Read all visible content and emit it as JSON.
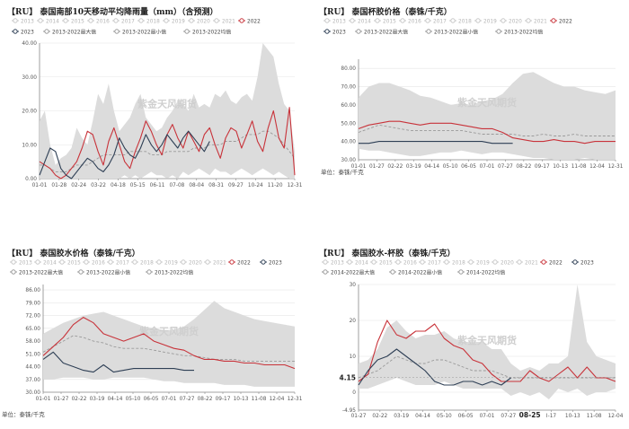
{
  "colors": {
    "band": "#dcdcdc",
    "red": "#c8333a",
    "navy": "#2e3f55",
    "avg": "#9a9a9a",
    "axis": "#888",
    "grid": "#e6e6e6",
    "legend_off": "#c8c8c8",
    "legend_text_off": "#b4b4b4"
  },
  "watermark": "紫金天风期货",
  "chart_data": [
    {
      "id": "rain",
      "type": "line",
      "title": "【RU】 泰国南部10天移动平均降雨量（mm）（含预测）",
      "legend_row1": [
        {
          "label": "2013",
          "on": false
        },
        {
          "label": "2014",
          "on": false
        },
        {
          "label": "2015",
          "on": false
        },
        {
          "label": "2016",
          "on": false
        },
        {
          "label": "2017",
          "on": false
        },
        {
          "label": "2018",
          "on": false
        },
        {
          "label": "2019",
          "on": false
        },
        {
          "label": "2020",
          "on": false
        },
        {
          "label": "2021",
          "on": false
        },
        {
          "label": "2022",
          "on": true,
          "color": "red"
        }
      ],
      "legend_row2": [
        {
          "label": "2023",
          "on": true,
          "color": "navy"
        },
        {
          "label": "2013-2022最大值",
          "on": true,
          "color": "avg"
        },
        {
          "label": "2013-2022最小值",
          "on": true,
          "color": "avg"
        },
        {
          "label": "2013-2022均值",
          "on": true,
          "color": "avg"
        }
      ],
      "x_ticks": [
        "01-01",
        "01-28",
        "02-24",
        "03-22",
        "04-18",
        "05-15",
        "06-11",
        "07-08",
        "08-04",
        "08-31",
        "09-27",
        "10-24",
        "11-20",
        "12-31"
      ],
      "y_ticks": [
        "0.00",
        "10.00",
        "20.00",
        "30.00",
        "40.00"
      ],
      "ylim": [
        0,
        40
      ],
      "unit": "",
      "series": [
        {
          "name": "2013-2022最大值",
          "role": "band_upper",
          "values": [
            17,
            20,
            10,
            4,
            6,
            7,
            9,
            15,
            12,
            10,
            17,
            25,
            22,
            28,
            20,
            14,
            16,
            18,
            22,
            25,
            18,
            16,
            14,
            15,
            18,
            20,
            23,
            22,
            20,
            25,
            21,
            22,
            21,
            25,
            24,
            26,
            23,
            22,
            24,
            25,
            23,
            30,
            40,
            38,
            36,
            28,
            22,
            20,
            8
          ]
        },
        {
          "name": "2013-2022最小值",
          "role": "band_lower",
          "values": [
            0,
            0,
            0,
            0,
            0,
            0,
            0,
            0,
            0,
            0,
            0,
            0,
            0,
            0,
            0,
            0,
            1,
            0,
            1,
            0,
            1,
            2,
            1,
            1,
            0,
            1,
            0,
            2,
            1,
            2,
            3,
            2,
            1,
            3,
            2,
            2,
            1,
            2,
            3,
            2,
            1,
            2,
            3,
            2,
            1,
            2,
            1,
            0,
            0
          ]
        },
        {
          "name": "2013-2022均值",
          "role": "mean",
          "values": [
            4,
            4,
            3,
            2,
            2,
            2,
            3,
            4,
            4,
            4,
            5,
            6,
            7,
            7,
            7,
            7,
            7,
            8,
            8,
            8,
            8,
            7,
            7,
            7,
            8,
            8,
            8,
            8,
            8,
            9,
            9,
            9,
            10,
            10,
            10,
            11,
            11,
            11,
            12,
            13,
            13,
            13,
            14,
            14,
            13,
            12,
            10,
            8,
            6
          ]
        },
        {
          "name": "2022",
          "role": "red",
          "values": [
            5,
            4,
            3,
            1,
            0,
            1,
            3,
            5,
            9,
            14,
            13,
            8,
            4,
            11,
            15,
            10,
            5,
            3,
            8,
            12,
            17,
            14,
            10,
            7,
            13,
            16,
            12,
            9,
            14,
            11,
            8,
            13,
            15,
            10,
            6,
            12,
            15,
            14,
            9,
            13,
            17,
            11,
            8,
            15,
            20,
            12,
            9,
            21,
            1
          ]
        },
        {
          "name": "2023",
          "role": "navy",
          "values": [
            1,
            5,
            9,
            8,
            3,
            1,
            0,
            2,
            4,
            6,
            5,
            3,
            2,
            4,
            7,
            12,
            9,
            7,
            6,
            9,
            13,
            10,
            8,
            10,
            13,
            11,
            9,
            12,
            14,
            12,
            10,
            8,
            11
          ]
        }
      ]
    },
    {
      "id": "cup",
      "type": "line",
      "title": "【RU】 泰国杯胶价格（泰铢/千克）",
      "legend_row1": [
        {
          "label": "2013",
          "on": false
        },
        {
          "label": "2014",
          "on": false
        },
        {
          "label": "2015",
          "on": false
        },
        {
          "label": "2016",
          "on": false
        },
        {
          "label": "2017",
          "on": false
        },
        {
          "label": "2018",
          "on": false
        },
        {
          "label": "2019",
          "on": false
        },
        {
          "label": "2020",
          "on": false
        },
        {
          "label": "2021",
          "on": false
        },
        {
          "label": "2022",
          "on": true,
          "color": "red"
        }
      ],
      "legend_row2": [
        {
          "label": "2023",
          "on": true,
          "color": "navy"
        },
        {
          "label": "2013-2022最大值",
          "on": true,
          "color": "avg"
        },
        {
          "label": "2013-2022最小值",
          "on": true,
          "color": "avg"
        },
        {
          "label": "2013-2022均值",
          "on": true,
          "color": "avg"
        }
      ],
      "x_ticks": [
        "01-01",
        "01-27",
        "02-22",
        "03-19",
        "04-14",
        "05-10",
        "06-05",
        "07-01",
        "07-27",
        "08-22",
        "09-17",
        "10-13",
        "11-08",
        "12-04",
        "12-31"
      ],
      "y_ticks": [
        "30.00",
        "40.00",
        "50.00",
        "60.00",
        "70.00",
        "80.00"
      ],
      "ylim": [
        30,
        85
      ],
      "unit": "单位：泰铢/千克",
      "series": [
        {
          "name": "2013-2022最大值",
          "role": "band_upper",
          "values": [
            64,
            70,
            72,
            72,
            70,
            68,
            65,
            64,
            62,
            60,
            61,
            60,
            62,
            63,
            66,
            72,
            77,
            78,
            75,
            72,
            70,
            70,
            68,
            67,
            66,
            68
          ]
        },
        {
          "name": "2013-2022最小值",
          "role": "band_lower",
          "values": [
            36,
            35,
            35,
            34,
            33,
            32,
            32,
            33,
            34,
            34,
            35,
            34,
            33,
            34,
            34,
            33,
            32,
            31,
            31,
            30,
            30,
            30,
            31,
            30,
            30,
            30
          ]
        },
        {
          "name": "2013-2022均值",
          "role": "mean",
          "values": [
            45,
            47,
            49,
            48,
            47,
            46,
            46,
            46,
            46,
            46,
            46,
            45,
            44,
            44,
            44,
            44,
            43,
            43,
            44,
            43,
            43,
            44,
            43,
            43,
            43,
            43
          ]
        },
        {
          "name": "2022",
          "role": "red",
          "values": [
            47,
            49,
            50,
            51,
            51,
            50,
            49,
            50,
            50,
            50,
            49,
            48,
            47,
            47,
            45,
            42,
            41,
            40,
            40,
            41,
            40,
            40,
            39,
            40,
            40,
            40
          ]
        },
        {
          "name": "2023",
          "role": "navy",
          "values": [
            39,
            39,
            40,
            40,
            40,
            40,
            40,
            40,
            40,
            40,
            40,
            40,
            40,
            39,
            39,
            39
          ]
        }
      ]
    },
    {
      "id": "latex",
      "type": "line",
      "title": "【RU】 泰国胶水价格（泰铢/千克）",
      "legend_row1": [
        {
          "label": "2013",
          "on": false
        },
        {
          "label": "2014",
          "on": false
        },
        {
          "label": "2015",
          "on": false
        },
        {
          "label": "2016",
          "on": false
        },
        {
          "label": "2017",
          "on": false
        },
        {
          "label": "2018",
          "on": false
        },
        {
          "label": "2019",
          "on": false
        },
        {
          "label": "2020",
          "on": false
        },
        {
          "label": "2021",
          "on": false
        },
        {
          "label": "2022",
          "on": true,
          "color": "red"
        },
        {
          "label": "2023",
          "on": true,
          "color": "navy"
        }
      ],
      "legend_row2": [
        {
          "label": "2013-2022最大值",
          "on": true,
          "color": "avg"
        },
        {
          "label": "2013-2022最小值",
          "on": true,
          "color": "avg"
        },
        {
          "label": "2013-2022均值",
          "on": true,
          "color": "avg"
        }
      ],
      "x_ticks": [
        "01-01",
        "01-27",
        "02-22",
        "03-19",
        "04-14",
        "05-10",
        "06-05",
        "07-01",
        "07-27",
        "08-22",
        "09-17",
        "10-13",
        "11-08",
        "12-04",
        "12-31"
      ],
      "y_ticks": [
        "30.00",
        "37.00",
        "44.00",
        "51.00",
        "58.00",
        "65.00",
        "72.00",
        "79.00",
        "86.00"
      ],
      "ylim": [
        30,
        89
      ],
      "unit": "单位：泰铢/千克",
      "series": [
        {
          "name": "2013-2022最大值",
          "role": "band_upper",
          "values": [
            62,
            65,
            68,
            70,
            72,
            73,
            74,
            72,
            70,
            68,
            66,
            65,
            64,
            64,
            66,
            70,
            75,
            80,
            76,
            74,
            72,
            70,
            69,
            68,
            67,
            66
          ]
        },
        {
          "name": "2013-2022最小值",
          "role": "band_lower",
          "values": [
            37,
            37,
            38,
            38,
            38,
            37,
            37,
            38,
            38,
            38,
            38,
            37,
            36,
            36,
            35,
            35,
            35,
            35,
            34,
            34,
            34,
            33,
            33,
            33,
            33,
            33
          ]
        },
        {
          "name": "2013-2022均值",
          "role": "mean",
          "values": [
            52,
            55,
            58,
            61,
            60,
            58,
            57,
            55,
            54,
            54,
            54,
            53,
            52,
            51,
            50,
            50,
            49,
            48,
            48,
            48,
            47,
            47,
            47,
            47,
            47,
            47
          ]
        },
        {
          "name": "2022",
          "role": "red",
          "values": [
            50,
            55,
            60,
            67,
            71,
            68,
            62,
            60,
            58,
            60,
            62,
            58,
            56,
            54,
            53,
            50,
            48,
            48,
            47,
            47,
            46,
            46,
            45,
            45,
            45,
            43
          ]
        },
        {
          "name": "2023",
          "role": "navy",
          "values": [
            48,
            52,
            46,
            44,
            42,
            41,
            45,
            41,
            42,
            43,
            43,
            43,
            43,
            43,
            42,
            42
          ]
        }
      ]
    },
    {
      "id": "spread",
      "type": "line",
      "title": "【RU】 泰国胶水-杯胶（泰铢/千克）",
      "legend_row1": [
        {
          "label": "2013",
          "on": false
        },
        {
          "label": "2014",
          "on": false
        },
        {
          "label": "2015",
          "on": false
        },
        {
          "label": "2016",
          "on": false
        },
        {
          "label": "2017",
          "on": false
        },
        {
          "label": "2018",
          "on": false
        },
        {
          "label": "2019",
          "on": false
        },
        {
          "label": "2020",
          "on": false
        },
        {
          "label": "2021",
          "on": false
        },
        {
          "label": "2022",
          "on": true,
          "color": "red"
        },
        {
          "label": "2023",
          "on": true,
          "color": "navy"
        }
      ],
      "legend_row2": [
        {
          "label": "2014-2022最大值",
          "on": true,
          "color": "avg"
        },
        {
          "label": "2014-2022最小值",
          "on": true,
          "color": "avg"
        },
        {
          "label": "2014-2022均值",
          "on": true,
          "color": "avg"
        }
      ],
      "x_ticks": [
        "01-27",
        "02-22",
        "03-19",
        "04-14",
        "05-10",
        "06-05",
        "07-01",
        "07-27",
        "08-25",
        "I-17",
        "10-13",
        "11-08",
        "12-04"
      ],
      "x_ticks_highlight": "08-25",
      "y_ticks": [
        "-4.95",
        "0",
        "10",
        "20",
        "30"
      ],
      "y_highlight": "4.15",
      "ylim": [
        -5,
        30
      ],
      "unit": "",
      "series": [
        {
          "name": "2014-2022最大值",
          "role": "band_upper",
          "values": [
            8,
            9,
            12,
            18,
            20,
            17,
            15,
            16,
            16,
            17,
            15,
            14,
            14,
            14,
            12,
            12,
            8,
            6,
            7,
            6,
            8,
            8,
            10,
            30,
            14,
            10,
            9,
            8
          ]
        },
        {
          "name": "2014-2022最小值",
          "role": "band_lower",
          "values": [
            1,
            1,
            2,
            3,
            4,
            3,
            2,
            2,
            2,
            3,
            2,
            1,
            1,
            1,
            1,
            1,
            -1,
            0,
            -1,
            0,
            -2,
            1,
            0,
            1,
            -1,
            0,
            0,
            1
          ]
        },
        {
          "name": "2014-2022均值",
          "role": "mean",
          "values": [
            4,
            5,
            6,
            8,
            10,
            9,
            8,
            8,
            9,
            9,
            8,
            7,
            6,
            6,
            6,
            5,
            4,
            4,
            4,
            4,
            4,
            4,
            4,
            4,
            4,
            4,
            4,
            4
          ]
        },
        {
          "name": "2022",
          "role": "red",
          "values": [
            3,
            5,
            14,
            20,
            16,
            15,
            17,
            17,
            19,
            15,
            13,
            12,
            9,
            8,
            5,
            3,
            3,
            3,
            6,
            4,
            3,
            5,
            7,
            4,
            7,
            4,
            4,
            3
          ]
        },
        {
          "name": "2023",
          "role": "navy",
          "values": [
            2,
            6,
            9,
            10,
            12,
            10,
            8,
            6,
            3,
            2,
            2,
            3,
            3,
            2,
            3,
            2,
            4
          ]
        }
      ]
    }
  ]
}
